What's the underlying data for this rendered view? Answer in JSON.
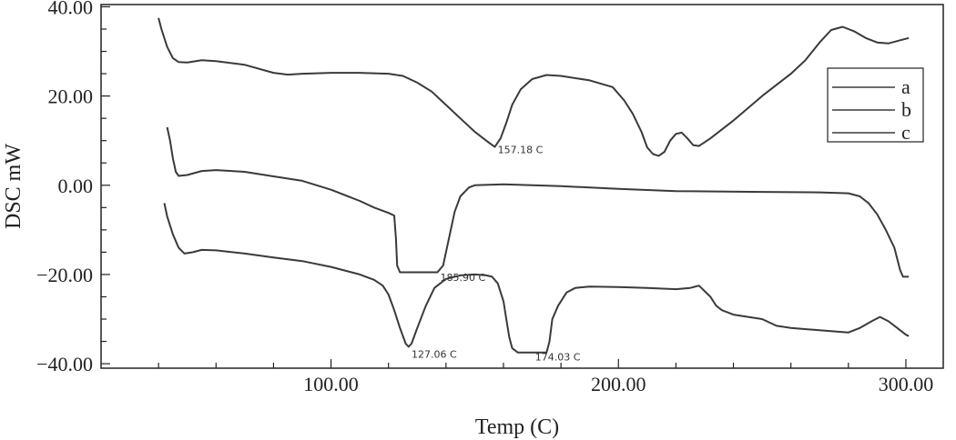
{
  "chart_data": {
    "type": "line",
    "xlabel": "Temp (C)",
    "ylabel": "DSC mW",
    "xlim": [
      20,
      313
    ],
    "ylim": [
      -41,
      40.5
    ],
    "x_ticks": [
      100,
      200,
      300
    ],
    "x_tick_labels": [
      "100.00",
      "200.00",
      "300.00"
    ],
    "y_ticks": [
      40,
      20,
      0,
      -20,
      -40
    ],
    "y_tick_labels": [
      "40.00",
      "20.00",
      "0.00",
      "−20.00",
      "−40.00"
    ],
    "legend": {
      "position": "top-right",
      "entries": [
        "a",
        "b",
        "c"
      ]
    },
    "line_color": "#3a3a3a",
    "series": [
      {
        "name": "a",
        "points": [
          [
            40,
            37.5
          ],
          [
            41,
            35
          ],
          [
            43,
            31
          ],
          [
            45,
            28.5
          ],
          [
            47,
            27.6
          ],
          [
            50,
            27.5
          ],
          [
            55,
            28
          ],
          [
            60,
            27.8
          ],
          [
            70,
            27
          ],
          [
            80,
            25.2
          ],
          [
            85,
            24.8
          ],
          [
            90,
            25
          ],
          [
            100,
            25.2
          ],
          [
            110,
            25.2
          ],
          [
            120,
            25
          ],
          [
            125,
            24.5
          ],
          [
            130,
            23
          ],
          [
            135,
            21
          ],
          [
            140,
            18
          ],
          [
            145,
            15
          ],
          [
            150,
            12
          ],
          [
            155,
            9.5
          ],
          [
            157,
            8.6
          ],
          [
            159,
            10.5
          ],
          [
            161,
            14
          ],
          [
            163,
            18
          ],
          [
            166,
            21.5
          ],
          [
            170,
            23.8
          ],
          [
            175,
            24.7
          ],
          [
            180,
            24.5
          ],
          [
            190,
            23.5
          ],
          [
            198,
            22
          ],
          [
            202,
            19
          ],
          [
            205,
            16
          ],
          [
            208,
            12
          ],
          [
            210,
            8.5
          ],
          [
            212,
            7
          ],
          [
            214,
            6.6
          ],
          [
            216,
            7.5
          ],
          [
            218,
            10
          ],
          [
            220,
            11.5
          ],
          [
            222,
            11.8
          ],
          [
            224,
            10.5
          ],
          [
            226,
            9
          ],
          [
            228,
            8.8
          ],
          [
            232,
            10.5
          ],
          [
            240,
            14.5
          ],
          [
            250,
            20
          ],
          [
            260,
            25
          ],
          [
            265,
            28
          ],
          [
            270,
            32
          ],
          [
            274,
            34.8
          ],
          [
            278,
            35.5
          ],
          [
            282,
            34.5
          ],
          [
            286,
            33
          ],
          [
            290,
            32
          ],
          [
            294,
            31.8
          ],
          [
            298,
            32.5
          ],
          [
            301,
            33
          ]
        ]
      },
      {
        "name": "b",
        "points": [
          [
            43,
            13
          ],
          [
            44,
            10
          ],
          [
            45,
            6
          ],
          [
            46,
            3
          ],
          [
            47,
            2.1
          ],
          [
            50,
            2.3
          ],
          [
            55,
            3.2
          ],
          [
            60,
            3.4
          ],
          [
            70,
            3
          ],
          [
            80,
            2
          ],
          [
            90,
            1
          ],
          [
            100,
            -1
          ],
          [
            110,
            -3.5
          ],
          [
            115,
            -5
          ],
          [
            120,
            -6.2
          ],
          [
            122,
            -6.8
          ],
          [
            122.6,
            -12
          ],
          [
            123,
            -18
          ],
          [
            124,
            -19.5
          ],
          [
            130,
            -19.5
          ],
          [
            137,
            -19.5
          ],
          [
            139,
            -18
          ],
          [
            141,
            -12
          ],
          [
            143,
            -6
          ],
          [
            145,
            -2.5
          ],
          [
            148,
            -0.5
          ],
          [
            150,
            0
          ],
          [
            160,
            0.2
          ],
          [
            180,
            -0.2
          ],
          [
            200,
            -0.8
          ],
          [
            220,
            -1.3
          ],
          [
            250,
            -1.5
          ],
          [
            270,
            -1.6
          ],
          [
            280,
            -1.8
          ],
          [
            284,
            -2.5
          ],
          [
            287,
            -4
          ],
          [
            290,
            -6.5
          ],
          [
            293,
            -10
          ],
          [
            296,
            -14
          ],
          [
            298,
            -19
          ],
          [
            299,
            -20.5
          ],
          [
            301,
            -20.5
          ]
        ]
      },
      {
        "name": "c",
        "points": [
          [
            42,
            -4
          ],
          [
            43,
            -7
          ],
          [
            45,
            -11
          ],
          [
            47,
            -14
          ],
          [
            49,
            -15.3
          ],
          [
            52,
            -15
          ],
          [
            55,
            -14.5
          ],
          [
            60,
            -14.6
          ],
          [
            70,
            -15.3
          ],
          [
            80,
            -16.2
          ],
          [
            90,
            -17
          ],
          [
            100,
            -18.3
          ],
          [
            110,
            -20
          ],
          [
            115,
            -21.2
          ],
          [
            118,
            -22.5
          ],
          [
            120,
            -24.5
          ],
          [
            122,
            -28
          ],
          [
            124,
            -32
          ],
          [
            126,
            -35.5
          ],
          [
            127,
            -36.2
          ],
          [
            128,
            -35.5
          ],
          [
            130,
            -32
          ],
          [
            133,
            -27
          ],
          [
            136,
            -23
          ],
          [
            140,
            -21
          ],
          [
            145,
            -20.2
          ],
          [
            150,
            -20
          ],
          [
            154,
            -20.2
          ],
          [
            156,
            -20.5
          ],
          [
            158,
            -22
          ],
          [
            160,
            -26
          ],
          [
            161,
            -30
          ],
          [
            162,
            -34
          ],
          [
            163,
            -36.5
          ],
          [
            165,
            -37.5
          ],
          [
            170,
            -37.5
          ],
          [
            175,
            -37.5
          ],
          [
            176,
            -35
          ],
          [
            177,
            -30
          ],
          [
            179,
            -27
          ],
          [
            182,
            -24
          ],
          [
            185,
            -23
          ],
          [
            190,
            -22.7
          ],
          [
            200,
            -22.8
          ],
          [
            210,
            -23
          ],
          [
            220,
            -23.3
          ],
          [
            225,
            -23
          ],
          [
            228,
            -22.5
          ],
          [
            232,
            -25
          ],
          [
            234,
            -27
          ],
          [
            236,
            -28
          ],
          [
            240,
            -29
          ],
          [
            250,
            -30
          ],
          [
            255,
            -31.5
          ],
          [
            260,
            -32
          ],
          [
            270,
            -32.5
          ],
          [
            280,
            -33
          ],
          [
            284,
            -32
          ],
          [
            288,
            -30.5
          ],
          [
            291,
            -29.5
          ],
          [
            294,
            -30.5
          ],
          [
            297,
            -32
          ],
          [
            300,
            -33.5
          ],
          [
            301,
            -33.8
          ]
        ]
      }
    ],
    "annotations": [
      {
        "text": "157.18  C",
        "x": 158,
        "y": 8
      },
      {
        "text": "127.06  C",
        "x": 128,
        "y": -37.8
      },
      {
        "text": "185.90  C",
        "x": 138,
        "y": -20.6
      },
      {
        "text": "174.03  C",
        "x": 171,
        "y": -38.5
      }
    ]
  }
}
